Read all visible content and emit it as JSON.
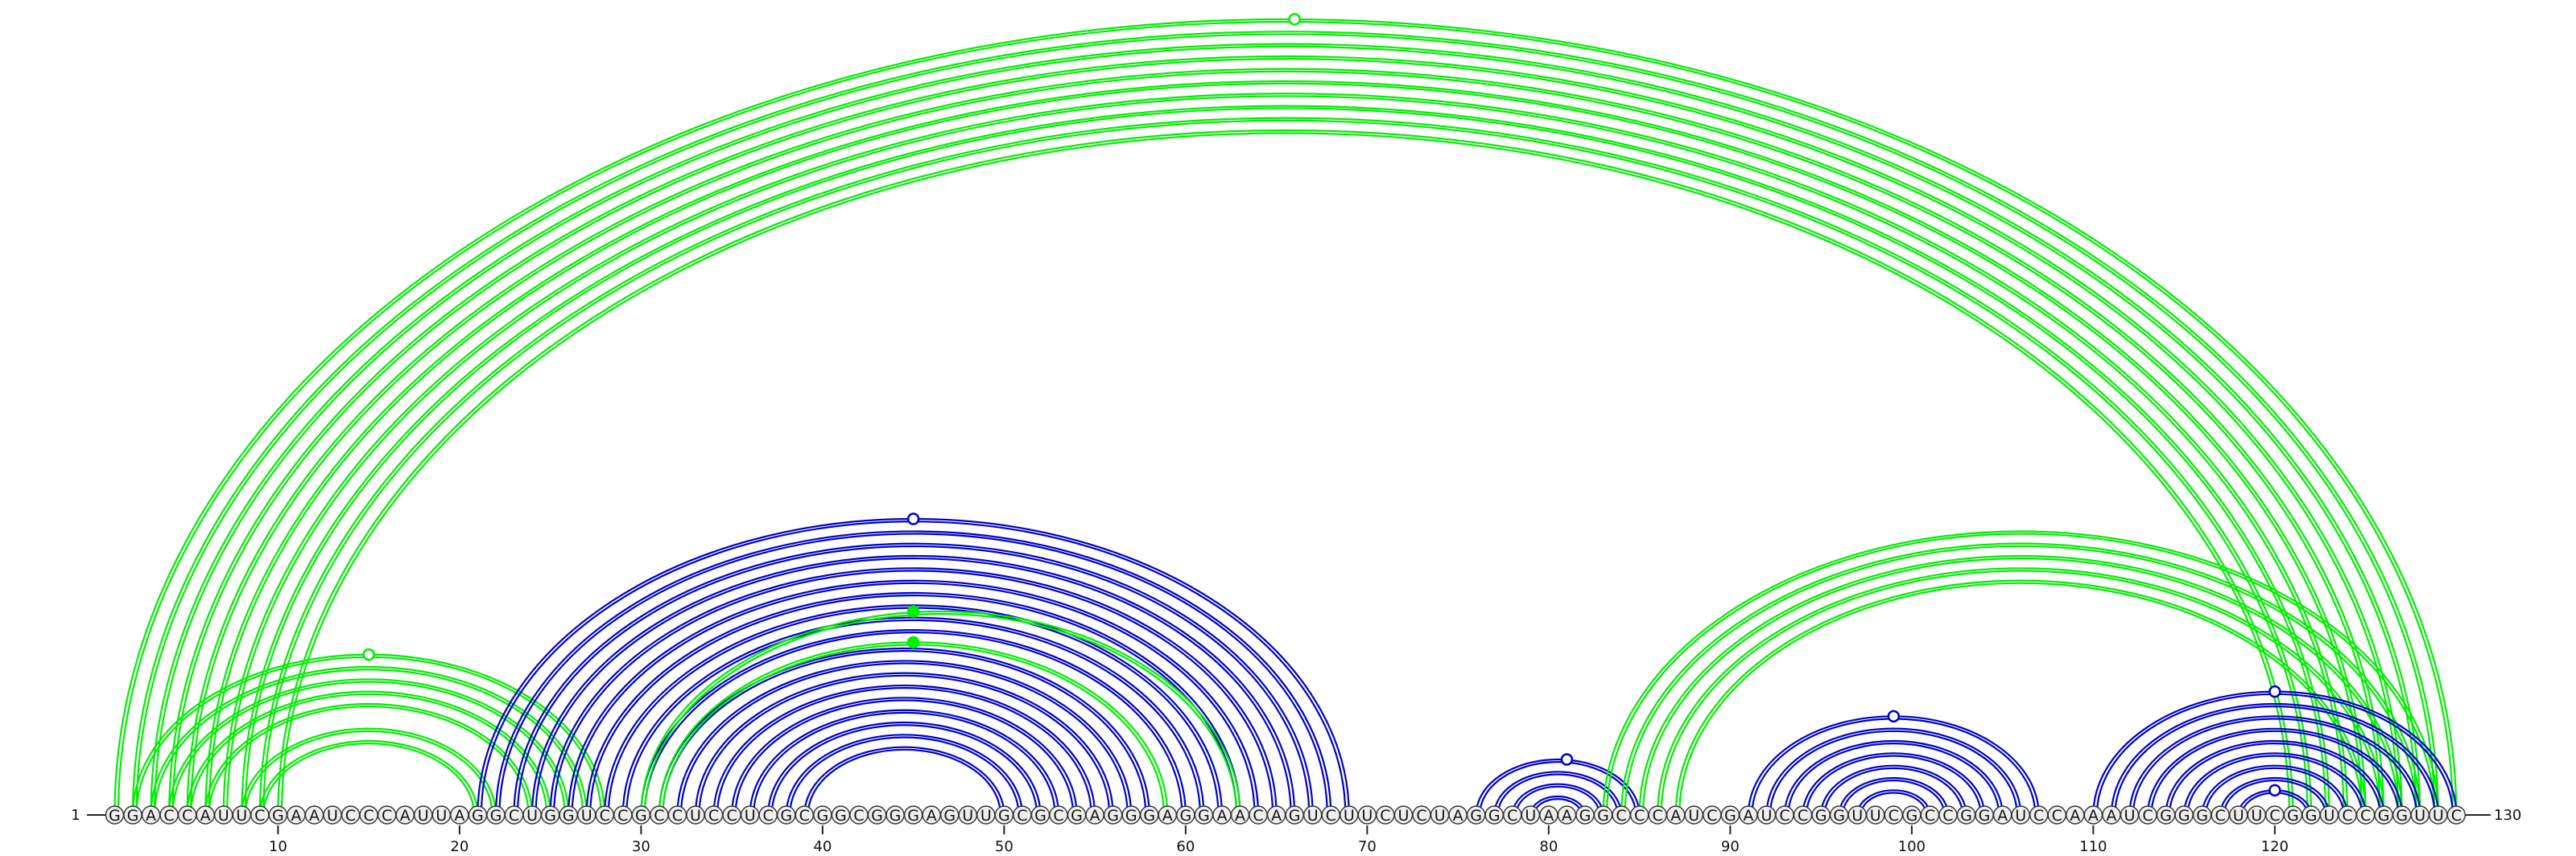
{
  "sequence": "GGACCAUUCGAAUCCCAUUAGGCUGGUCCGCCUCCUCGCGGCGGGAGUUGCGCGAGGGAGGAACAGUCUUCUCUAGGCUAAGGCCCAUCGAUCCGGUUCGCCGGAUCCAAAUCGGGCUUCGGUCCGGUUC",
  "start_label": "1",
  "end_label": "130",
  "tick_labels": [
    "10",
    "20",
    "30",
    "40",
    "50",
    "60",
    "70",
    "80",
    "90",
    "100",
    "110",
    "120"
  ],
  "colors": {
    "green": "#00ee00",
    "blue": "#0000cc",
    "axis": "#222222",
    "node_fill": "#eeeeee"
  },
  "chart_data": {
    "type": "arc-diagram",
    "length": 130,
    "arc_groups": [
      {
        "color": "green",
        "pairs": [
          [
            1,
            130
          ],
          [
            2,
            129
          ],
          [
            3,
            128
          ],
          [
            4,
            127
          ],
          [
            5,
            126
          ],
          [
            6,
            125
          ],
          [
            7,
            124
          ],
          [
            8,
            123
          ],
          [
            9,
            122
          ],
          [
            10,
            121
          ]
        ],
        "marker": {
          "type": "open",
          "pos": 66
        }
      },
      {
        "color": "green",
        "pairs": [
          [
            2,
            28
          ],
          [
            3,
            27
          ],
          [
            4,
            26
          ],
          [
            5,
            25
          ],
          [
            6,
            24
          ],
          [
            8,
            22
          ],
          [
            9,
            21
          ]
        ],
        "marker": {
          "type": "open",
          "pos": 15
        }
      },
      {
        "color": "blue",
        "pairs": [
          [
            21,
            69
          ],
          [
            22,
            68
          ],
          [
            23,
            67
          ],
          [
            24,
            66
          ],
          [
            25,
            65
          ],
          [
            26,
            64
          ],
          [
            27,
            63
          ],
          [
            28,
            62
          ],
          [
            29,
            61
          ],
          [
            30,
            60
          ],
          [
            31,
            58
          ],
          [
            32,
            57
          ],
          [
            33,
            56
          ],
          [
            34,
            55
          ],
          [
            35,
            54
          ],
          [
            36,
            53
          ],
          [
            37,
            52
          ],
          [
            38,
            51
          ],
          [
            39,
            50
          ]
        ],
        "marker": {
          "type": "open",
          "pos": 45
        }
      },
      {
        "color": "green",
        "pairs": [
          [
            30,
            63
          ]
        ],
        "marker": {
          "type": "filled",
          "pos": 45
        }
      },
      {
        "color": "green",
        "pairs": [
          [
            31,
            59
          ]
        ],
        "marker": {
          "type": "filled",
          "pos": 45
        }
      },
      {
        "color": "blue",
        "pairs": [
          [
            76,
            85
          ],
          [
            77,
            84
          ],
          [
            78,
            83
          ],
          [
            79,
            82
          ]
        ],
        "marker": {
          "type": "open",
          "pos": 81
        }
      },
      {
        "color": "green",
        "pairs": [
          [
            83,
            129
          ],
          [
            84,
            128
          ],
          [
            85,
            127
          ],
          [
            86,
            126
          ],
          [
            87,
            125
          ]
        ],
        "marker": null
      },
      {
        "color": "blue",
        "pairs": [
          [
            91,
            107
          ],
          [
            92,
            106
          ],
          [
            93,
            105
          ],
          [
            94,
            104
          ],
          [
            95,
            103
          ],
          [
            96,
            102
          ],
          [
            97,
            101
          ]
        ],
        "marker": {
          "type": "open",
          "pos": 99
        }
      },
      {
        "color": "blue",
        "pairs": [
          [
            110,
            130
          ],
          [
            111,
            129
          ],
          [
            112,
            128
          ],
          [
            113,
            127
          ],
          [
            114,
            126
          ],
          [
            115,
            125
          ],
          [
            116,
            124
          ],
          [
            117,
            123
          ]
        ],
        "marker": {
          "type": "open",
          "pos": 120
        }
      },
      {
        "color": "blue",
        "pairs": [
          [
            118,
            122
          ]
        ],
        "marker": {
          "type": "open",
          "pos": 120
        }
      }
    ]
  }
}
